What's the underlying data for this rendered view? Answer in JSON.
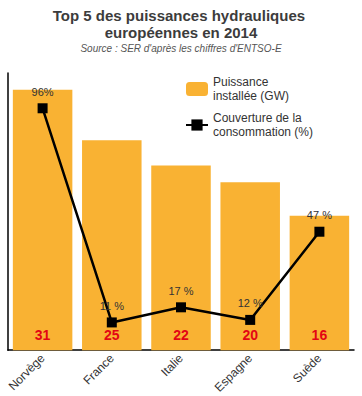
{
  "chart_data": {
    "type": "bar",
    "title": "Top 5 des puissances hydrauliques européennes en 2014",
    "subtitle": "Source : SER d'après les chiffres d'ENTSO-E",
    "categories": [
      "Norvège",
      "France",
      "Italie",
      "Espagne",
      "Suède"
    ],
    "series": [
      {
        "name": "Puissance installée (GW)",
        "type": "bar",
        "color": "#f9b233",
        "values": [
          31,
          25,
          22,
          20,
          16
        ]
      },
      {
        "name": "Couverture de la consommation (%)",
        "type": "line",
        "axis": "y2",
        "color": "#000000",
        "marker": "square",
        "line_style": "solid",
        "values": [
          96,
          11,
          17,
          12,
          47
        ],
        "value_labels": [
          "96%",
          "11 %",
          "17 %",
          "12 %",
          "47 %"
        ]
      }
    ],
    "ylim": [
      0,
      33
    ],
    "y2lim": [
      0,
      110
    ],
    "grid": false,
    "legend": "top-right",
    "data_labels": true,
    "tick_labels": "x"
  }
}
